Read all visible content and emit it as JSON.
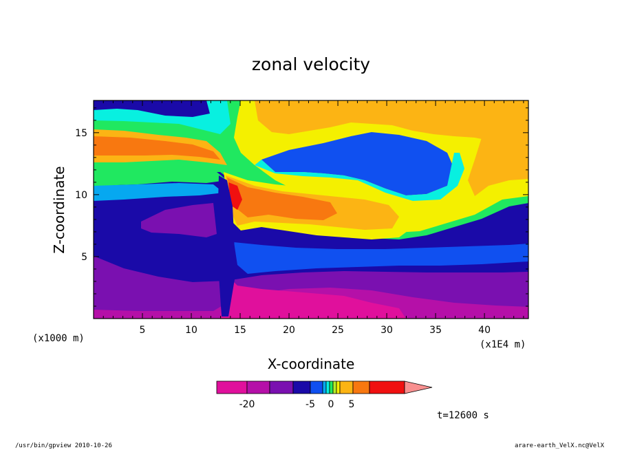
{
  "chart_data": {
    "type": "heatmap",
    "title": "zonal velocity",
    "xlabel": "X-coordinate",
    "ylabel": "Z-coordinate",
    "x_units_left": "(x1000 m)",
    "x_units_right": "(x1E4 m)",
    "xlim": [
      0,
      44.5
    ],
    "ylim": [
      0,
      17.6
    ],
    "x_ticks": [
      5,
      10,
      15,
      20,
      25,
      30,
      35,
      40
    ],
    "y_ticks": [
      5,
      10,
      15
    ],
    "colorbar": {
      "colors": [
        "#e0109c",
        "#b510a8",
        "#7a10b0",
        "#1a0aa8",
        "#1050f0",
        "#06a8f0",
        "#08f0e0",
        "#20e860",
        "#b4ee2a",
        "#f4f000",
        "#fcb414",
        "#f87810",
        "#f01010"
      ],
      "extend_color": "#f89090",
      "tick_labels": [
        "-20",
        "-5",
        "0",
        "5"
      ]
    },
    "regions": [
      {
        "label": "upper-left blue",
        "color": "#1a0aa8",
        "x": [
          0,
          6
        ],
        "y": [
          16.5,
          17.6
        ]
      },
      {
        "label": "upper orange jet",
        "color": "#fcb414",
        "x": [
          0,
          13
        ],
        "y": [
          12,
          15.5
        ]
      },
      {
        "label": "upper-right yellow/orange",
        "color": "#f4f000",
        "x": [
          16,
          44.5
        ],
        "y": [
          12,
          17.6
        ]
      },
      {
        "label": "central blue pocket",
        "color": "#1050f0",
        "x": [
          18,
          37
        ],
        "y": [
          11,
          15.5
        ]
      },
      {
        "label": "mid orange layer",
        "color": "#f87810",
        "x": [
          14,
          33
        ],
        "y": [
          7.5,
          11
        ]
      },
      {
        "label": "left deep blue",
        "color": "#1a0aa8",
        "x": [
          0,
          13
        ],
        "y": [
          5,
          9
        ]
      },
      {
        "label": "left purple pocket",
        "color": "#7a10b0",
        "x": [
          5,
          13
        ],
        "y": [
          6.5,
          8.5
        ]
      },
      {
        "label": "lower purple layer",
        "color": "#7a10b0",
        "x": [
          0,
          44.5
        ],
        "y": [
          1.5,
          4.5
        ]
      },
      {
        "label": "bottom magenta",
        "color": "#e0109c",
        "x": [
          13,
          32
        ],
        "y": [
          0,
          2.2
        ]
      }
    ]
  },
  "time_label": "t=12600 s",
  "footer_left": "/usr/bin/gpview   2010-10-26",
  "footer_right": "arare-earth_VelX.nc@VelX",
  "colors": {
    "frame": "#000000",
    "background": "#ffffff"
  }
}
